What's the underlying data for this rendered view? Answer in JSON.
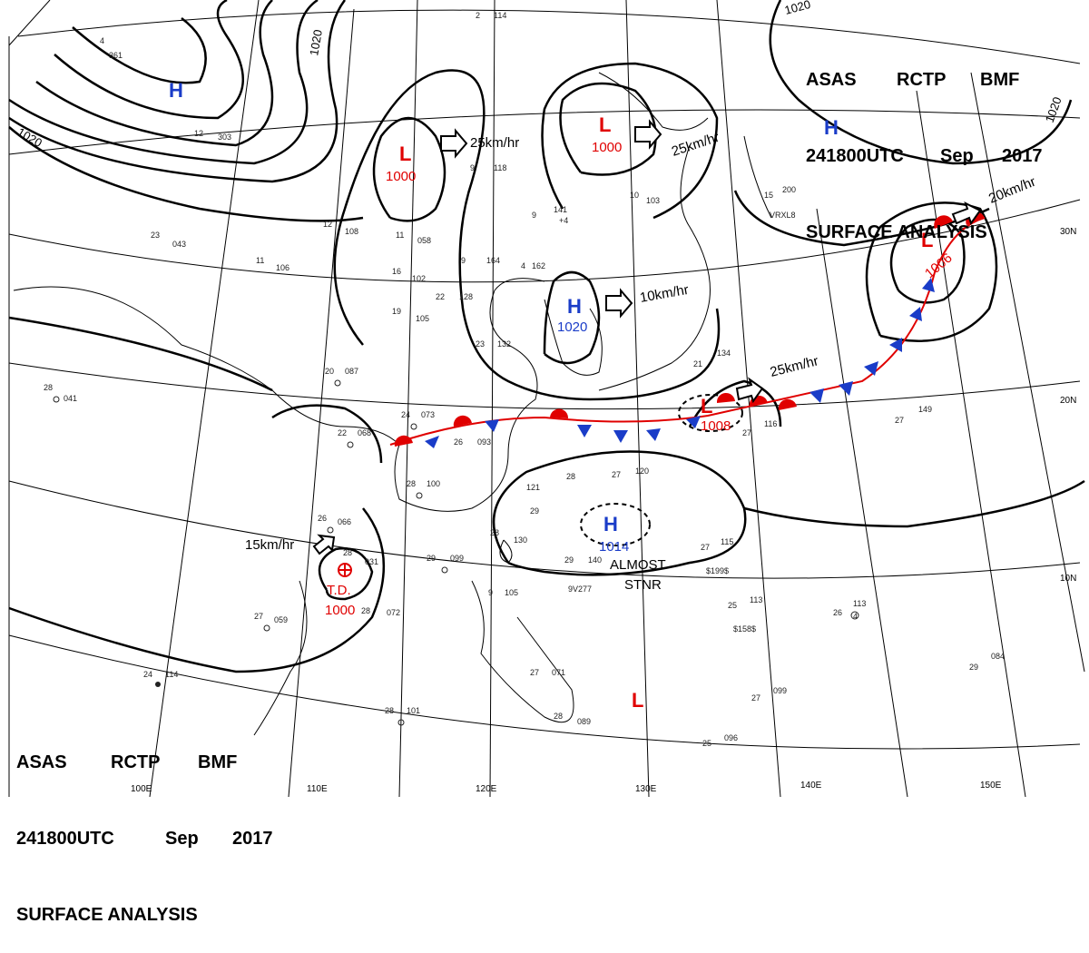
{
  "header": {
    "line1": [
      "ASAS",
      "RCTP",
      "BMF"
    ],
    "line2": [
      "241800UTC",
      "Sep",
      "2017"
    ],
    "line3": "SURFACE ANALYSIS"
  },
  "colors": {
    "high": "#1a3cc8",
    "low": "#e00000",
    "warm_front": "#e00000",
    "cold_front": "#1a3cc8",
    "isobar": "#000000",
    "grid": "#000000"
  },
  "pressure_centers": [
    {
      "id": "h-nw",
      "symbol": "H",
      "value": "",
      "kind": "high"
    },
    {
      "id": "l-north1",
      "symbol": "L",
      "value": "1000",
      "kind": "low"
    },
    {
      "id": "l-north2",
      "symbol": "L",
      "value": "1000",
      "kind": "low"
    },
    {
      "id": "h-ne",
      "symbol": "H",
      "value": "",
      "kind": "high"
    },
    {
      "id": "h-korea",
      "symbol": "H",
      "value": "1020",
      "kind": "high"
    },
    {
      "id": "l-east",
      "symbol": "L",
      "value": "1006",
      "kind": "low"
    },
    {
      "id": "l-japan",
      "symbol": "L",
      "value": "1008",
      "kind": "low"
    },
    {
      "id": "h-sea",
      "symbol": "H",
      "value": "1014",
      "kind": "high"
    },
    {
      "id": "td",
      "symbol": "T.D.",
      "value": "1000",
      "kind": "low"
    },
    {
      "id": "l-south",
      "symbol": "L",
      "value": "",
      "kind": "low"
    }
  ],
  "motion_labels": {
    "m1": "25km/hr",
    "m2": "25km/hr",
    "m3": "20km/hr",
    "m4": "10km/hr",
    "m5": "25km/hr",
    "m6": "15km/hr"
  },
  "remarks": {
    "line1": "ALMOST",
    "line2": "STNR"
  },
  "isobar_labels": {
    "i1": "1020",
    "i2": "1020",
    "i3": "1020",
    "i4": "1020"
  },
  "lat_labels": {
    "lat30": "30N",
    "lat20": "20N",
    "lat10": "10N"
  },
  "lon_labels": {
    "lon110": "110E",
    "lon120": "120E",
    "lon130": "130E",
    "lon140": "140E",
    "lon150": "150E",
    "lon100": "100E"
  },
  "station_plots": [
    {
      "t": "28",
      "p": "041"
    },
    {
      "t": "20",
      "p": "087"
    },
    {
      "t": "24",
      "p": "073"
    },
    {
      "t": "22",
      "p": "068"
    },
    {
      "t": "28",
      "p": "100"
    },
    {
      "t": "26",
      "p": "066"
    },
    {
      "t": "29",
      "p": "099"
    },
    {
      "t": "27",
      "p": "059"
    },
    {
      "t": "28",
      "p": "101"
    },
    {
      "t": "24",
      "p": "114"
    },
    {
      "t": "27",
      "p": "115"
    },
    {
      "t": "25",
      "p": "113"
    },
    {
      "t": "26",
      "p": "113"
    },
    {
      "t": "29",
      "p": "084"
    },
    {
      "t": "27",
      "p": "099"
    },
    {
      "t": "25",
      "p": "096"
    },
    {
      "t": "27",
      "p": "149"
    },
    {
      "t": "27",
      "p": "116"
    },
    {
      "t": "19",
      "p": "105"
    },
    {
      "t": "22",
      "p": "128"
    },
    {
      "t": "9",
      "p": "141"
    },
    {
      "t": "12",
      "p": "108"
    },
    {
      "t": "11",
      "p": "058"
    },
    {
      "t": "16",
      "p": "102"
    },
    {
      "t": "9",
      "p": "164"
    },
    {
      "t": "4",
      "p": "162"
    },
    {
      "t": "15",
      "p": "200"
    },
    {
      "t": "23",
      "p": "132"
    },
    {
      "t": "21",
      "p": "134"
    },
    {
      "t": "28",
      "p": "120"
    },
    {
      "t": "29",
      "p": "121"
    },
    {
      "t": "27",
      "p": "120"
    },
    {
      "t": "26",
      "p": "093"
    },
    {
      "t": "23",
      "p": "043"
    },
    {
      "t": "11",
      "p": "106"
    },
    {
      "t": "12",
      "p": "303"
    },
    {
      "t": "4",
      "p": "361"
    },
    {
      "t": "9",
      "p": "118"
    },
    {
      "t": "10",
      "p": "103"
    },
    {
      "t": "2",
      "p": "114"
    },
    {
      "t": "28",
      "p": "031"
    },
    {
      "t": "28",
      "p": "072"
    },
    {
      "t": "28",
      "p": "130"
    },
    {
      "t": "29",
      "p": "140"
    },
    {
      "t": "9",
      "p": "105"
    },
    {
      "t": "27",
      "p": "071"
    },
    {
      "t": "28",
      "p": "089"
    }
  ],
  "misc_text": {
    "ship1": "$199$",
    "ship2": "$158$",
    "ship3": "9V277",
    "vrxl": "VRXL8",
    "wind1": "4",
    "wind2": "+4"
  }
}
